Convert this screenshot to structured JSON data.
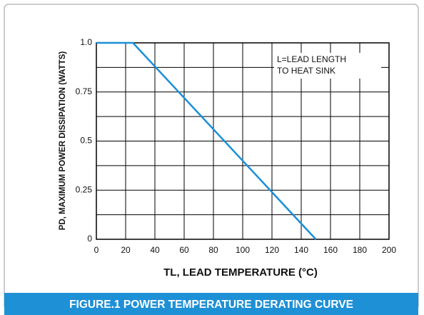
{
  "chart_data": {
    "type": "line",
    "title": "FIGURE.1 POWER TEMPERATURE DERATING CURVE",
    "x_label": "TL, LEAD TEMPERATURE (°C)",
    "y_label": "PD, MAXIMUM POWER DISSIPATION (WATTS)",
    "annotation": [
      "L=LEAD LENGTH",
      "TO HEAT SINK"
    ],
    "x": [
      0,
      25,
      150
    ],
    "series": [
      {
        "color": "#1a8fd8",
        "values": [
          1,
          1,
          0
        ]
      }
    ],
    "xlim": [
      0,
      200
    ],
    "xticks": [
      0,
      20,
      40,
      60,
      80,
      100,
      120,
      140,
      160,
      180,
      200
    ],
    "ylim": [
      0,
      1
    ],
    "yticks": [
      0,
      0.25,
      0.5,
      0.75,
      {
        "value": 1,
        "label": "1.0"
      }
    ],
    "ygrid": [
      0.125,
      0.375,
      0.625,
      0.875
    ],
    "grid": true
  }
}
